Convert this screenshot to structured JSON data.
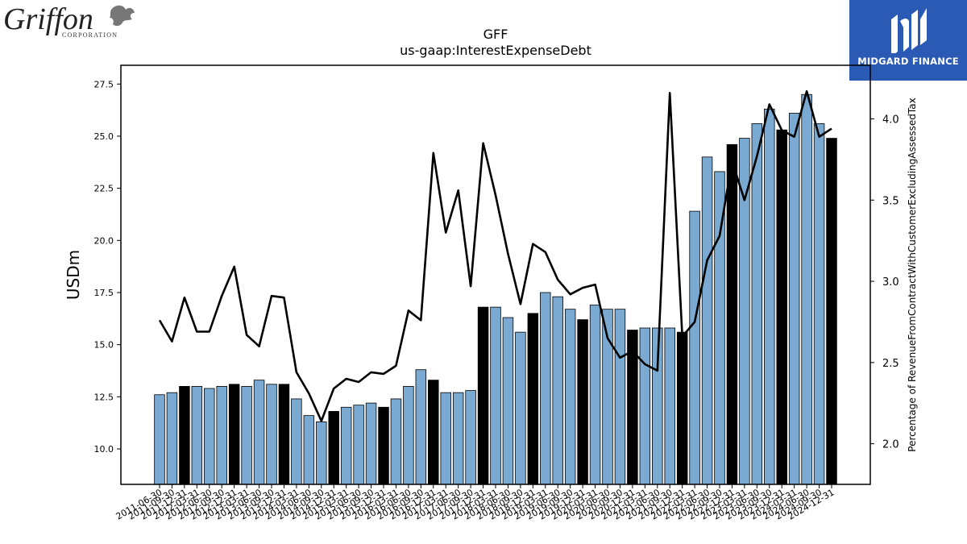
{
  "branding": {
    "left_logo_name": "Griffon",
    "left_logo_sub": "CORPORATION",
    "right_logo_text": "MIDGARD FINANCE",
    "right_logo_color": "#2a5ab3"
  },
  "chart_data": {
    "type": "bar",
    "title": "GFF",
    "subtitle": "us-gaap:InterestExpenseDebt",
    "ylabel": "USDm",
    "y2label": "Percentage of RevenueFromContractWithCustomerExcludingAssessedTax",
    "ylim": [
      8.3,
      28.4
    ],
    "y2lim": [
      1.75,
      4.33
    ],
    "yticks": [
      "10.0",
      "12.5",
      "15.0",
      "17.5",
      "20.0",
      "22.5",
      "25.0",
      "27.5"
    ],
    "y2ticks": [
      "2.0",
      "2.5",
      "3.0",
      "3.5",
      "4.0"
    ],
    "bar_color": "#7aaad2",
    "highlight_color": "#000000",
    "line_color": "#000000",
    "categories": [
      "2011-06-30",
      "2011-09-30",
      "2011-12-31",
      "2012-03-31",
      "2012-06-30",
      "2012-09-30",
      "2012-12-31",
      "2013-03-31",
      "2013-06-30",
      "2013-09-30",
      "2013-12-31",
      "2014-03-31",
      "2014-06-30",
      "2014-09-30",
      "2014-12-31",
      "2015-03-31",
      "2015-06-30",
      "2015-09-30",
      "2015-12-31",
      "2016-03-31",
      "2016-06-30",
      "2016-09-30",
      "2016-12-31",
      "2017-03-31",
      "2017-06-30",
      "2017-09-30",
      "2017-12-31",
      "2018-03-31",
      "2018-06-30",
      "2018-09-30",
      "2018-12-31",
      "2019-03-31",
      "2019-06-30",
      "2019-09-30",
      "2019-12-31",
      "2020-03-31",
      "2020-06-30",
      "2020-09-30",
      "2020-12-31",
      "2021-03-31",
      "2021-06-30",
      "2021-09-30",
      "2021-12-31",
      "2022-03-31",
      "2022-06-30",
      "2022-09-30",
      "2022-12-31",
      "2023-03-31",
      "2023-06-30",
      "2023-09-30",
      "2023-12-31",
      "2024-03-31",
      "2024-06-30",
      "2024-09-30",
      "2024-12-31"
    ],
    "values": [
      12.6,
      12.7,
      13.0,
      13.0,
      12.9,
      13.0,
      13.1,
      13.0,
      13.3,
      13.1,
      13.1,
      12.4,
      11.6,
      11.3,
      11.8,
      12.0,
      12.1,
      12.2,
      12.0,
      12.4,
      13.0,
      13.8,
      13.3,
      12.7,
      12.7,
      12.8,
      16.8,
      16.8,
      16.3,
      15.6,
      16.5,
      17.5,
      17.3,
      16.7,
      16.2,
      16.9,
      16.7,
      16.7,
      15.7,
      15.8,
      15.8,
      15.8,
      15.6,
      21.4,
      24.0,
      23.3,
      24.6,
      24.9,
      25.6,
      26.3,
      25.3,
      26.1,
      27.0,
      25.6,
      24.9
    ],
    "highlighted": [
      false,
      false,
      true,
      false,
      false,
      false,
      true,
      false,
      false,
      false,
      true,
      false,
      false,
      false,
      true,
      false,
      false,
      false,
      true,
      false,
      false,
      false,
      true,
      false,
      false,
      false,
      true,
      false,
      false,
      false,
      true,
      false,
      false,
      false,
      true,
      false,
      false,
      false,
      true,
      false,
      false,
      false,
      true,
      false,
      false,
      false,
      true,
      false,
      false,
      false,
      true,
      false,
      false,
      false,
      true
    ],
    "line_values": [
      2.76,
      2.63,
      2.9,
      2.69,
      2.69,
      2.91,
      3.09,
      2.67,
      2.6,
      2.91,
      2.9,
      2.44,
      2.31,
      2.14,
      2.34,
      2.4,
      2.38,
      2.44,
      2.43,
      2.48,
      2.82,
      2.76,
      3.79,
      3.3,
      3.56,
      2.97,
      3.85,
      3.53,
      3.17,
      2.86,
      3.23,
      3.18,
      3.01,
      2.92,
      2.96,
      2.98,
      2.65,
      2.53,
      2.57,
      2.49,
      2.45,
      4.16,
      2.66,
      2.75,
      3.13,
      3.28,
      3.74,
      3.5,
      3.77,
      4.09,
      3.93,
      3.89,
      4.17,
      3.89,
      3.94
    ]
  }
}
